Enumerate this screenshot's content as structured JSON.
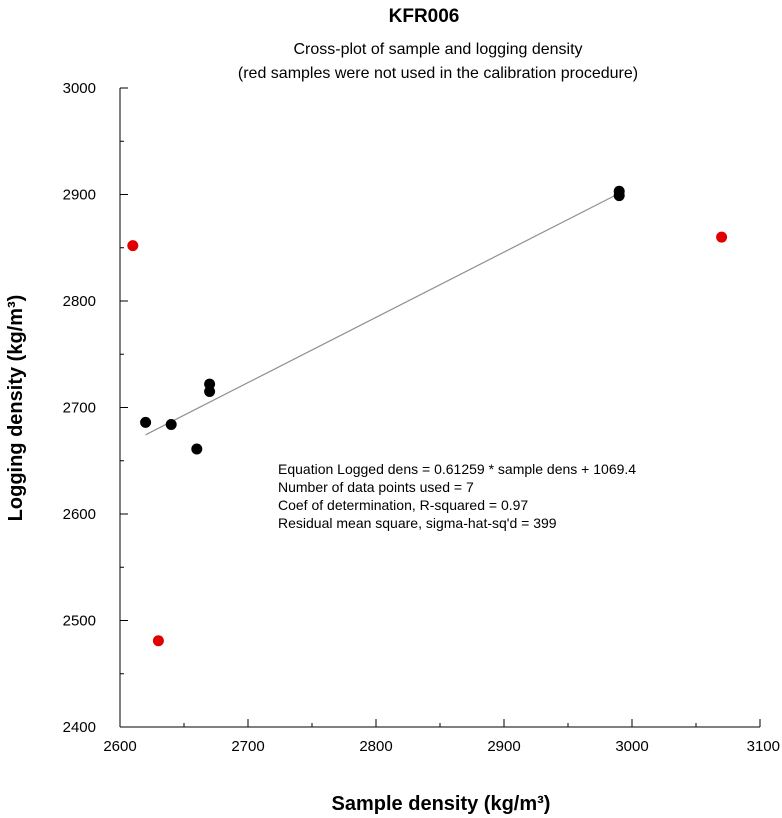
{
  "chart_data": {
    "type": "scatter",
    "title": "KFR006",
    "subtitle": [
      "Cross-plot of sample and logging density",
      "(red samples were not used in the calibration procedure)"
    ],
    "xlabel": "Sample density (kg/m³)",
    "ylabel": "Logging density (kg/m³)",
    "xlim": [
      2600,
      3100
    ],
    "ylim": [
      2400,
      3000
    ],
    "xticks": [
      "2600",
      "2700",
      "2800",
      "2900",
      "3000",
      "3100"
    ],
    "yticks": [
      "2400",
      "2500",
      "2600",
      "2700",
      "2800",
      "2900",
      "3000"
    ],
    "grid": false,
    "series": [
      {
        "color": "#000000",
        "points": [
          {
            "x": 2620,
            "y": 2686
          },
          {
            "x": 2640,
            "y": 2684
          },
          {
            "x": 2660,
            "y": 2661
          },
          {
            "x": 2670,
            "y": 2722
          },
          {
            "x": 2670,
            "y": 2715
          },
          {
            "x": 2990,
            "y": 2903
          },
          {
            "x": 2990,
            "y": 2899
          }
        ]
      },
      {
        "color": "#e00000",
        "points": [
          {
            "x": 2610,
            "y": 2852
          },
          {
            "x": 2630,
            "y": 2481
          },
          {
            "x": 3070,
            "y": 2860
          }
        ]
      }
    ],
    "fit_line": {
      "color": "#909090",
      "slope": 0.61259,
      "intercept": 1069.4,
      "x_start": 2620,
      "x_end": 2990
    },
    "annotations": [
      "Equation Logged dens = 0.61259 * sample dens + 1069.4",
      "Number of data points used = 7",
      "Coef of determination, R-squared = 0.97",
      "Residual mean square, sigma-hat-sq'd = 399"
    ]
  }
}
